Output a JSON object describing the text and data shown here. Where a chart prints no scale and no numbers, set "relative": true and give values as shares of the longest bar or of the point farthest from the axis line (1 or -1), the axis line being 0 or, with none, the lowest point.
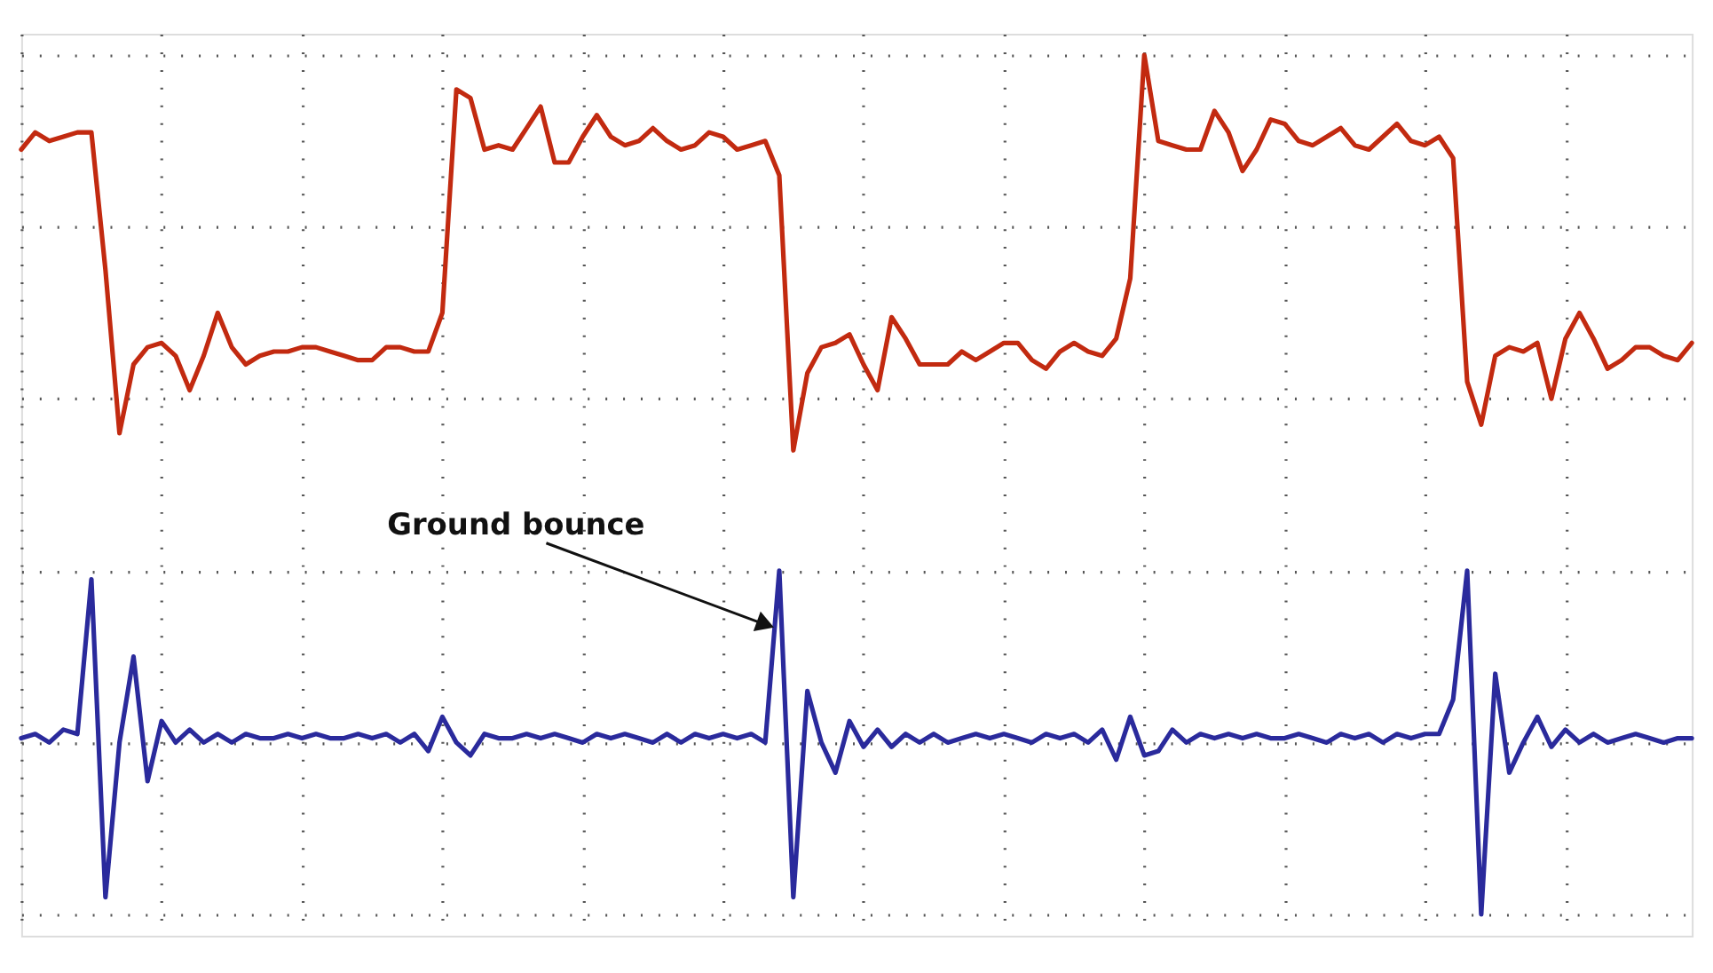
{
  "chart_data": {
    "type": "line",
    "relative": true,
    "grid": true,
    "legend": false,
    "marker": "none",
    "line_style": "solid",
    "categories": [
      null,
      null,
      null,
      null,
      null,
      null,
      null,
      null,
      null,
      null,
      null,
      null,
      null,
      null,
      null,
      null,
      null,
      null,
      null,
      null,
      null,
      null,
      null,
      null,
      null,
      null,
      null,
      null,
      null,
      null,
      null,
      null,
      null,
      null,
      null,
      null,
      null,
      null,
      null,
      null,
      null,
      null,
      null,
      null,
      null,
      null,
      null,
      null,
      null,
      null,
      null,
      null,
      null,
      null,
      null,
      null,
      null,
      null,
      null,
      null,
      null,
      null,
      null,
      null,
      null,
      null,
      null,
      null,
      null,
      null,
      null,
      null,
      null,
      null,
      null,
      null,
      null,
      null,
      null,
      null,
      null,
      null,
      null,
      null,
      null,
      null,
      null,
      null,
      null,
      null,
      null,
      null,
      null,
      null,
      null,
      null,
      null,
      null,
      null,
      null,
      null,
      null,
      null,
      null,
      null,
      null,
      null,
      null,
      null,
      null,
      null,
      null,
      null,
      null,
      null,
      null,
      null,
      null,
      null,
      null
    ],
    "series": [
      {
        "color": "#c22a10",
        "values": [
          0.89,
          0.91,
          0.9,
          0.905,
          0.91,
          0.91,
          0.75,
          0.56,
          0.64,
          0.66,
          0.665,
          0.65,
          0.61,
          0.65,
          0.7,
          0.66,
          0.64,
          0.65,
          0.655,
          0.655,
          0.66,
          0.66,
          0.655,
          0.65,
          0.645,
          0.645,
          0.66,
          0.66,
          0.655,
          0.655,
          0.7,
          0.96,
          0.95,
          0.89,
          0.895,
          0.89,
          0.915,
          0.94,
          0.875,
          0.875,
          0.905,
          0.93,
          0.905,
          0.895,
          0.9,
          0.915,
          0.9,
          0.89,
          0.895,
          0.91,
          0.905,
          0.89,
          0.895,
          0.9,
          0.86,
          0.54,
          0.63,
          0.66,
          0.665,
          0.675,
          0.64,
          0.61,
          0.695,
          0.67,
          0.64,
          0.64,
          0.64,
          0.655,
          0.645,
          0.655,
          0.665,
          0.665,
          0.645,
          0.635,
          0.655,
          0.665,
          0.655,
          0.65,
          0.67,
          0.74,
          1.0,
          0.9,
          0.895,
          0.89,
          0.89,
          0.935,
          0.91,
          0.865,
          0.89,
          0.925,
          0.92,
          0.9,
          0.895,
          0.905,
          0.915,
          0.895,
          0.89,
          0.905,
          0.92,
          0.9,
          0.895,
          0.905,
          0.88,
          0.62,
          0.57,
          0.65,
          0.66,
          0.655,
          0.665,
          0.6,
          0.67,
          0.7,
          0.67,
          0.635,
          0.645,
          0.66,
          0.66,
          0.65,
          0.645,
          0.665
        ]
      },
      {
        "color": "#2a2a9c",
        "values": [
          0.205,
          0.21,
          0.2,
          0.215,
          0.21,
          0.39,
          0.02,
          0.2,
          0.3,
          0.155,
          0.225,
          0.2,
          0.215,
          0.2,
          0.21,
          0.2,
          0.21,
          0.205,
          0.205,
          0.21,
          0.205,
          0.21,
          0.205,
          0.205,
          0.21,
          0.205,
          0.21,
          0.2,
          0.21,
          0.19,
          0.23,
          0.2,
          0.185,
          0.21,
          0.205,
          0.205,
          0.21,
          0.205,
          0.21,
          0.205,
          0.2,
          0.21,
          0.205,
          0.21,
          0.205,
          0.2,
          0.21,
          0.2,
          0.21,
          0.205,
          0.21,
          0.205,
          0.21,
          0.2,
          0.4,
          0.02,
          0.26,
          0.2,
          0.165,
          0.225,
          0.195,
          0.215,
          0.195,
          0.21,
          0.2,
          0.21,
          0.2,
          0.205,
          0.21,
          0.205,
          0.21,
          0.205,
          0.2,
          0.21,
          0.205,
          0.21,
          0.2,
          0.215,
          0.18,
          0.23,
          0.185,
          0.19,
          0.215,
          0.2,
          0.21,
          0.205,
          0.21,
          0.205,
          0.21,
          0.205,
          0.205,
          0.21,
          0.205,
          0.2,
          0.21,
          0.205,
          0.21,
          0.2,
          0.21,
          0.205,
          0.21,
          0.21,
          0.25,
          0.4,
          0.0,
          0.28,
          0.165,
          0.2,
          0.23,
          0.195,
          0.215,
          0.2,
          0.21,
          0.2,
          0.205,
          0.21,
          0.205,
          0.2,
          0.205,
          0.205
        ]
      }
    ],
    "annotations": [
      "Ground bounce"
    ]
  }
}
